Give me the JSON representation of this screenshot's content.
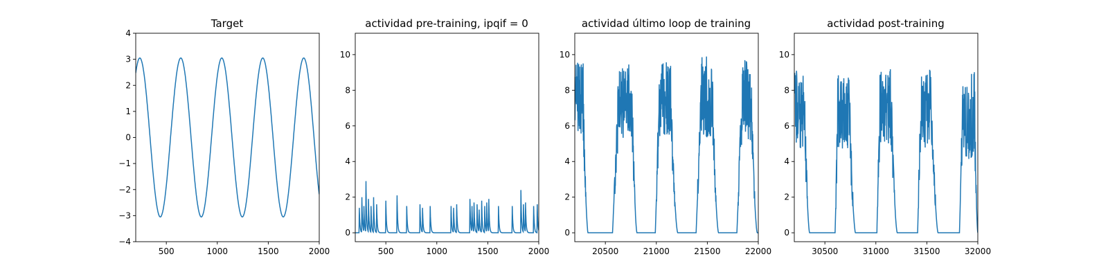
{
  "chart_data": [
    {
      "type": "line",
      "title": "Target",
      "xlabel": "",
      "ylabel": "",
      "xlim": [
        200,
        2000
      ],
      "ylim": [
        -4,
        4
      ],
      "xticks": [
        500,
        1000,
        1500,
        2000
      ],
      "yticks": [
        -4,
        -3,
        -2,
        -1,
        0,
        1,
        2,
        3,
        4
      ],
      "grid": false,
      "color": "#1f77b4",
      "series": [
        {
          "x": [
            200,
            225,
            250,
            275,
            300,
            325,
            350,
            375,
            400,
            425,
            450,
            475,
            500,
            525,
            550,
            575,
            600,
            625,
            650,
            675,
            700,
            725,
            750,
            775,
            800,
            825,
            850,
            875,
            900,
            925,
            950,
            975,
            1000,
            1025,
            1050,
            1075,
            1100,
            1125,
            1150,
            1175,
            1200,
            1225,
            1250,
            1275,
            1300,
            1325,
            1350,
            1375,
            1400,
            1425,
            1450,
            1475,
            1500,
            1525,
            1550,
            1575,
            1600,
            1625,
            1650,
            1675,
            1700,
            1725,
            1750,
            1775,
            1800,
            1825,
            1850,
            1875,
            1900,
            1925,
            1950,
            1975,
            2000
          ],
          "y": [
            2.21,
            2.82,
            3.05,
            2.88,
            2.33,
            1.49,
            0.47,
            -0.6,
            -1.61,
            -2.43,
            -2.93,
            -3.05,
            -2.78,
            -2.16,
            -1.28,
            -0.23,
            0.83,
            1.81,
            2.57,
            2.99,
            3.03,
            2.68,
            1.98,
            1.05,
            0.0,
            -1.05,
            -1.98,
            -2.68,
            -3.03,
            -2.99,
            -2.57,
            -1.81,
            -0.83,
            0.23,
            1.28,
            2.16,
            2.78,
            3.05,
            2.93,
            2.43,
            1.61,
            0.6,
            -0.47,
            -1.49,
            -2.33,
            -2.88,
            -3.05,
            -2.82,
            -2.21,
            -1.33,
            -0.29,
            0.78,
            1.76,
            2.54,
            2.99,
            3.04,
            2.71,
            2.02,
            1.11,
            0.06,
            -1.0,
            -1.94,
            -2.65,
            -3.02,
            -3.0,
            -2.61,
            -1.85,
            -0.88,
            0.17,
            1.23,
            2.12,
            2.76,
            -2.18
          ]
        }
      ]
    },
    {
      "type": "line",
      "title": "actividad pre-training, ipqif = 0",
      "xlabel": "",
      "ylabel": "",
      "xlim": [
        200,
        2000
      ],
      "ylim": [
        -0.5,
        11.2
      ],
      "xticks": [
        500,
        1000,
        1500,
        2000
      ],
      "yticks": [
        0,
        2,
        4,
        6,
        8,
        10
      ],
      "grid": false,
      "color": "#1f77b4",
      "spikes": [
        {
          "x": 240,
          "y": 1.4
        },
        {
          "x": 265,
          "y": 2.0
        },
        {
          "x": 285,
          "y": 1.5
        },
        {
          "x": 305,
          "y": 2.9
        },
        {
          "x": 330,
          "y": 1.9
        },
        {
          "x": 355,
          "y": 1.5
        },
        {
          "x": 380,
          "y": 2.0
        },
        {
          "x": 410,
          "y": 1.6
        },
        {
          "x": 500,
          "y": 1.8
        },
        {
          "x": 610,
          "y": 2.1
        },
        {
          "x": 705,
          "y": 1.5
        },
        {
          "x": 835,
          "y": 1.6
        },
        {
          "x": 860,
          "y": 1.4
        },
        {
          "x": 935,
          "y": 1.5
        },
        {
          "x": 1140,
          "y": 1.5
        },
        {
          "x": 1165,
          "y": 1.4
        },
        {
          "x": 1195,
          "y": 1.6
        },
        {
          "x": 1325,
          "y": 1.9
        },
        {
          "x": 1345,
          "y": 1.5
        },
        {
          "x": 1365,
          "y": 1.7
        },
        {
          "x": 1395,
          "y": 1.6
        },
        {
          "x": 1415,
          "y": 1.3
        },
        {
          "x": 1440,
          "y": 1.8
        },
        {
          "x": 1470,
          "y": 1.5
        },
        {
          "x": 1490,
          "y": 1.7
        },
        {
          "x": 1510,
          "y": 1.9
        },
        {
          "x": 1605,
          "y": 1.5
        },
        {
          "x": 1740,
          "y": 1.5
        },
        {
          "x": 1825,
          "y": 2.4
        },
        {
          "x": 1850,
          "y": 1.6
        },
        {
          "x": 1870,
          "y": 1.7
        },
        {
          "x": 1950,
          "y": 1.5
        },
        {
          "x": 1985,
          "y": 1.6
        }
      ]
    },
    {
      "type": "line",
      "title": "actividad último loop de training",
      "xlabel": "",
      "ylabel": "",
      "xlim": [
        20200,
        22000
      ],
      "ylim": [
        -0.5,
        11.2
      ],
      "xticks": [
        20500,
        21000,
        21500,
        22000
      ],
      "yticks": [
        0,
        2,
        4,
        6,
        8,
        10
      ],
      "grid": false,
      "color": "#1f77b4",
      "bursts": [
        {
          "start": 20190,
          "rise_end": 20200,
          "fall_start": 20280,
          "end": 20330,
          "peak": 9.8,
          "level": 7.6
        },
        {
          "start": 20570,
          "rise_end": 20630,
          "fall_start": 20760,
          "end": 20810,
          "peak": 10.2,
          "level": 7.4
        },
        {
          "start": 20990,
          "rise_end": 21030,
          "fall_start": 21140,
          "end": 21210,
          "peak": 9.6,
          "level": 7.5
        },
        {
          "start": 21390,
          "rise_end": 21440,
          "fall_start": 21550,
          "end": 21610,
          "peak": 10.2,
          "level": 7.4
        },
        {
          "start": 21790,
          "rise_end": 21840,
          "fall_start": 21930,
          "end": 21990,
          "peak": 9.7,
          "level": 7.2
        }
      ]
    },
    {
      "type": "line",
      "title": "actividad post-training",
      "xlabel": "",
      "ylabel": "",
      "xlim": [
        30200,
        32000
      ],
      "ylim": [
        -0.5,
        11.2
      ],
      "xticks": [
        30500,
        31000,
        31500,
        32000
      ],
      "yticks": [
        0,
        2,
        4,
        6,
        8,
        10
      ],
      "grid": false,
      "color": "#1f77b4",
      "bursts": [
        {
          "start": 30190,
          "rise_end": 30200,
          "fall_start": 30300,
          "end": 30350,
          "peak": 9.3,
          "level": 6.8
        },
        {
          "start": 30600,
          "rise_end": 30630,
          "fall_start": 30740,
          "end": 30800,
          "peak": 8.8,
          "level": 6.8
        },
        {
          "start": 31010,
          "rise_end": 31040,
          "fall_start": 31150,
          "end": 31210,
          "peak": 9.3,
          "level": 7.0
        },
        {
          "start": 31410,
          "rise_end": 31440,
          "fall_start": 31550,
          "end": 31610,
          "peak": 9.2,
          "level": 6.8
        },
        {
          "start": 31820,
          "rise_end": 31850,
          "fall_start": 31970,
          "end": 32000,
          "peak": 9.2,
          "level": 6.2
        }
      ]
    }
  ]
}
